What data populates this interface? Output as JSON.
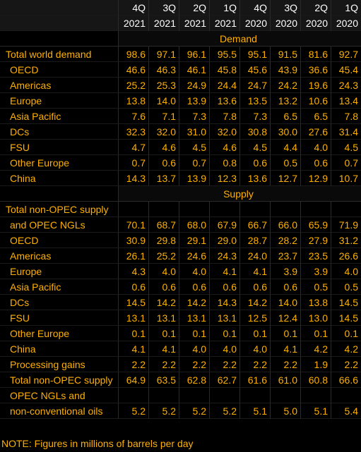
{
  "header": {
    "quarters": [
      "4Q",
      "3Q",
      "2Q",
      "1Q",
      "4Q",
      "3Q",
      "2Q",
      "1Q"
    ],
    "years": [
      "2021",
      "2021",
      "2021",
      "2021",
      "2020",
      "2020",
      "2020",
      "2020"
    ]
  },
  "sections": {
    "demand_title": "Demand",
    "supply_title": "Supply"
  },
  "demand_rows": [
    {
      "label": "Total world demand",
      "values": [
        "98.6",
        "97.1",
        "96.1",
        "95.5",
        "95.1",
        "91.5",
        "81.6",
        "92.7"
      ]
    },
    {
      "label": "OECD",
      "values": [
        "46.6",
        "46.3",
        "46.1",
        "45.8",
        "45.6",
        "43.9",
        "36.6",
        "45.4"
      ]
    },
    {
      "label": "Americas",
      "values": [
        "25.2",
        "25.3",
        "24.9",
        "24.4",
        "24.7",
        "24.2",
        "19.6",
        "24.3"
      ]
    },
    {
      "label": "Europe",
      "values": [
        "13.8",
        "14.0",
        "13.9",
        "13.6",
        "13.5",
        "13.2",
        "10.6",
        "13.4"
      ]
    },
    {
      "label": "Asia Pacific",
      "values": [
        "7.6",
        "7.1",
        "7.3",
        "7.8",
        "7.3",
        "6.5",
        "6.5",
        "7.8"
      ]
    },
    {
      "label": "DCs",
      "values": [
        "32.3",
        "32.0",
        "31.0",
        "32.0",
        "30.8",
        "30.0",
        "27.6",
        "31.4"
      ]
    },
    {
      "label": "FSU",
      "values": [
        "4.7",
        "4.6",
        "4.5",
        "4.6",
        "4.5",
        "4.4",
        "4.0",
        "4.5"
      ]
    },
    {
      "label": "Other Europe",
      "values": [
        "0.7",
        "0.6",
        "0.7",
        "0.8",
        "0.6",
        "0.5",
        "0.6",
        "0.7"
      ]
    },
    {
      "label": "China",
      "values": [
        "14.3",
        "13.7",
        "13.9",
        "12.3",
        "13.6",
        "12.7",
        "12.9",
        "10.7"
      ]
    }
  ],
  "supply_rows": [
    {
      "label": "Total non-OPEC supply",
      "values": [
        "",
        "",
        "",
        "",
        "",
        "",
        "",
        ""
      ]
    },
    {
      "label": "and OPEC NGLs",
      "values": [
        "70.1",
        "68.7",
        "68.0",
        "67.9",
        "66.7",
        "66.0",
        "65.9",
        "71.9"
      ]
    },
    {
      "label": "OECD",
      "values": [
        "30.9",
        "29.8",
        "29.1",
        "29.0",
        "28.7",
        "28.2",
        "27.9",
        "31.2"
      ]
    },
    {
      "label": "Americas",
      "values": [
        "26.1",
        "25.2",
        "24.6",
        "24.3",
        "24.0",
        "23.7",
        "23.5",
        "26.6"
      ]
    },
    {
      "label": "Europe",
      "values": [
        "4.3",
        "4.0",
        "4.0",
        "4.1",
        "4.1",
        "3.9",
        "3.9",
        "4.0"
      ]
    },
    {
      "label": "Asia Pacific",
      "values": [
        "0.6",
        "0.6",
        "0.6",
        "0.6",
        "0.6",
        "0.6",
        "0.5",
        "0.5"
      ]
    },
    {
      "label": "DCs",
      "values": [
        "14.5",
        "14.2",
        "14.2",
        "14.3",
        "14.2",
        "14.0",
        "13.8",
        "14.5"
      ]
    },
    {
      "label": "FSU",
      "values": [
        "13.1",
        "13.1",
        "13.1",
        "13.1",
        "12.5",
        "12.4",
        "13.0",
        "14.5"
      ]
    },
    {
      "label": "Other Europe",
      "values": [
        "0.1",
        "0.1",
        "0.1",
        "0.1",
        "0.1",
        "0.1",
        "0.1",
        "0.1"
      ]
    },
    {
      "label": "China",
      "values": [
        "4.1",
        "4.1",
        "4.0",
        "4.0",
        "4.0",
        "4.1",
        "4.2",
        "4.2"
      ]
    },
    {
      "label": "Processing gains",
      "values": [
        "2.2",
        "2.2",
        "2.2",
        "2.2",
        "2.2",
        "2.2",
        "1.9",
        "2.2"
      ]
    },
    {
      "label": "Total non-OPEC supply",
      "values": [
        "64.9",
        "63.5",
        "62.8",
        "62.7",
        "61.6",
        "61.0",
        "60.8",
        "66.6"
      ]
    },
    {
      "label": "OPEC NGLs and",
      "values": [
        "",
        "",
        "",
        "",
        "",
        "",
        "",
        ""
      ]
    },
    {
      "label": "non-conventional oils",
      "values": [
        "5.2",
        "5.2",
        "5.2",
        "5.2",
        "5.1",
        "5.0",
        "5.1",
        "5.4"
      ]
    }
  ],
  "footer": {
    "note": "NOTE: Figures in millions of barrels per day"
  },
  "colors": {
    "text": "#ffb000",
    "header_text": "#ffffff",
    "background": "#000000"
  }
}
